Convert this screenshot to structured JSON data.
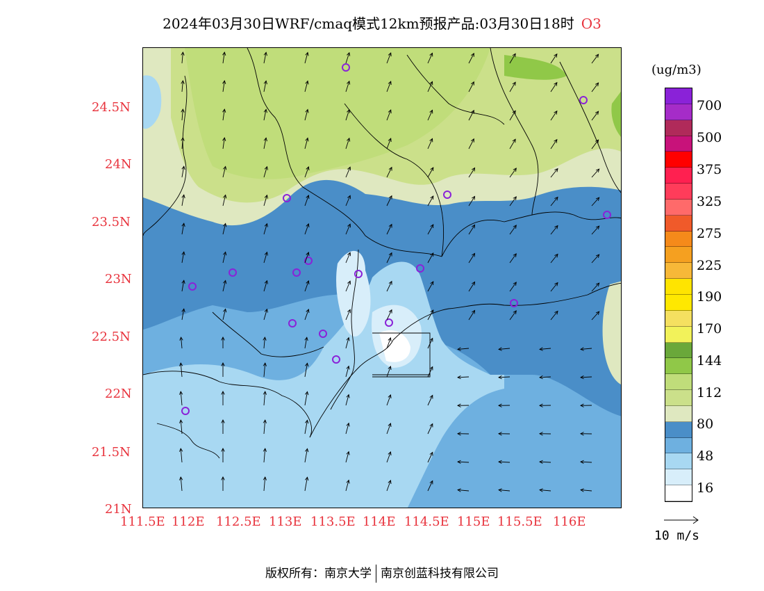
{
  "title": {
    "main": "2024年03月30日WRF/cmaq模式12km预报产品:03月30日18时",
    "species": "O3"
  },
  "axes": {
    "lat_labels": [
      "24.5N",
      "24N",
      "23.5N",
      "23N",
      "22.5N",
      "22N",
      "21.5N",
      "21N"
    ],
    "lon_labels": [
      "111.5E",
      "112E",
      "112.5E",
      "113E",
      "113.5E",
      "114E",
      "114.5E",
      "115E",
      "115.5E",
      "116E"
    ]
  },
  "colorbar": {
    "unit": "(ug/m3)",
    "labels": [
      "700",
      "500",
      "375",
      "325",
      "275",
      "225",
      "190",
      "170",
      "144",
      "112",
      "80",
      "48",
      "16"
    ],
    "colors": [
      "#8a22d8",
      "#a52cc8",
      "#b02a5a",
      "#c8127a",
      "#ff0000",
      "#ff2050",
      "#ff3c5a",
      "#ff6a6a",
      "#f05a2a",
      "#f58a1a",
      "#f5a020",
      "#f7b838",
      "#ffe400",
      "#ffe800",
      "#f5e060",
      "#f2f25a",
      "#6aa83a",
      "#90c848",
      "#c0dd7a",
      "#cbe08a",
      "#dfe8c0",
      "#4a8ec8",
      "#6eb0e0",
      "#a8d8f2",
      "#d8eefa",
      "#ffffff"
    ]
  },
  "wind_reference": {
    "label": "10 m/s"
  },
  "footer": {
    "left": "版权所有：南京大学",
    "right": "南京创蓝科技有限公司"
  },
  "icons": [
    "station-circle-icon",
    "wind-arrow-icon"
  ],
  "colors": {
    "tick_label": "#e8323c",
    "station_marker": "#8a22d8"
  }
}
